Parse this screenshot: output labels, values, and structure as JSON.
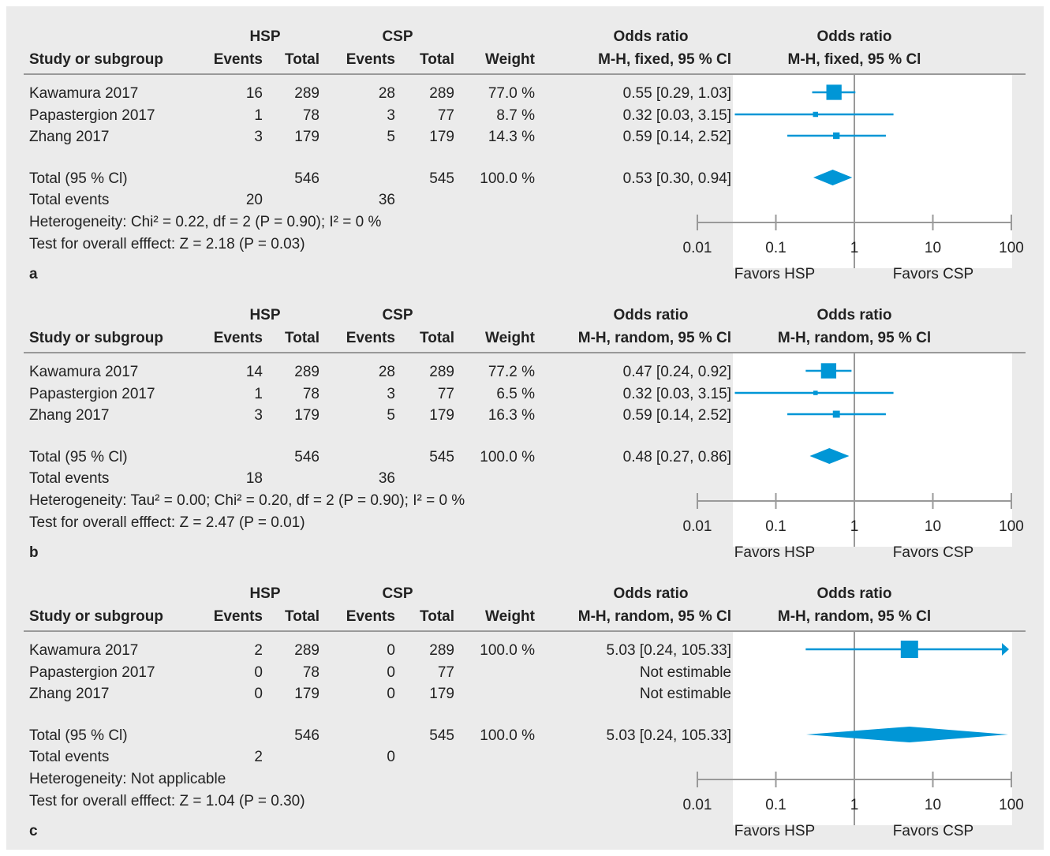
{
  "colors": {
    "panel_bg": "#ebebeb",
    "plot_bg": "#ffffff",
    "accent": "#0096d6",
    "axis": "#999999",
    "text": "#222222"
  },
  "headers": {
    "hsp": "HSP",
    "csp": "CSP",
    "study": "Study or subgroup",
    "events": "Events",
    "total": "Total",
    "weight": "Weight",
    "or_title": "Odds ratio"
  },
  "chart_data": [
    {
      "type": "forest",
      "panel": "a",
      "method": "M-H, fixed, 95 % Cl",
      "x_scale": "log",
      "xlim": [
        0.01,
        100
      ],
      "ticks": [
        "0.01",
        "0.1",
        "1",
        "10",
        "100"
      ],
      "favors_left": "Favors HSP",
      "favors_right": "Favors CSP",
      "studies": [
        {
          "name": "Kawamura 2017",
          "hsp_events": "16",
          "hsp_total": "289",
          "csp_events": "28",
          "csp_total": "289",
          "weight": "77.0 %",
          "ci_text": "0.55 [0.29, 1.03]",
          "or": 0.55,
          "lo": 0.29,
          "hi": 1.03,
          "w": 77.0
        },
        {
          "name": "Papastergion 2017",
          "hsp_events": "1",
          "hsp_total": "78",
          "csp_events": "3",
          "csp_total": "77",
          "weight": "8.7 %",
          "ci_text": "0.32 [0.03, 3.15]",
          "or": 0.32,
          "lo": 0.03,
          "hi": 3.15,
          "w": 8.7
        },
        {
          "name": "Zhang 2017",
          "hsp_events": "3",
          "hsp_total": "179",
          "csp_events": "5",
          "csp_total": "179",
          "weight": "14.3 %",
          "ci_text": "0.59 [0.14, 2.52]",
          "or": 0.59,
          "lo": 0.14,
          "hi": 2.52,
          "w": 14.3
        }
      ],
      "total": {
        "label": "Total (95 % Cl)",
        "hsp_total": "546",
        "csp_total": "545",
        "weight": "100.0 %",
        "ci_text": "0.53 [0.30, 0.94]",
        "or": 0.53,
        "lo": 0.3,
        "hi": 0.94
      },
      "events": {
        "label": "Total events",
        "hsp": "20",
        "csp": "36"
      },
      "heterogeneity": "Heterogeneity: Chi² = 0.22, df = 2 (P = 0.90); I² = 0 %",
      "overall": "Test for overall efffect: Z = 2.18 (P = 0.03)"
    },
    {
      "type": "forest",
      "panel": "b",
      "method": "M-H, random, 95 % Cl",
      "x_scale": "log",
      "xlim": [
        0.01,
        100
      ],
      "ticks": [
        "0.01",
        "0.1",
        "1",
        "10",
        "100"
      ],
      "favors_left": "Favors HSP",
      "favors_right": "Favors CSP",
      "studies": [
        {
          "name": "Kawamura 2017",
          "hsp_events": "14",
          "hsp_total": "289",
          "csp_events": "28",
          "csp_total": "289",
          "weight": "77.2 %",
          "ci_text": "0.47 [0.24, 0.92]",
          "or": 0.47,
          "lo": 0.24,
          "hi": 0.92,
          "w": 77.2
        },
        {
          "name": "Papastergion 2017",
          "hsp_events": "1",
          "hsp_total": "78",
          "csp_events": "3",
          "csp_total": "77",
          "weight": "6.5 %",
          "ci_text": "0.32 [0.03, 3.15]",
          "or": 0.32,
          "lo": 0.03,
          "hi": 3.15,
          "w": 6.5
        },
        {
          "name": "Zhang 2017",
          "hsp_events": "3",
          "hsp_total": "179",
          "csp_events": "5",
          "csp_total": "179",
          "weight": "16.3 %",
          "ci_text": "0.59 [0.14, 2.52]",
          "or": 0.59,
          "lo": 0.14,
          "hi": 2.52,
          "w": 16.3
        }
      ],
      "total": {
        "label": "Total (95 % Cl)",
        "hsp_total": "546",
        "csp_total": "545",
        "weight": "100.0 %",
        "ci_text": "0.48 [0.27, 0.86]",
        "or": 0.48,
        "lo": 0.27,
        "hi": 0.86
      },
      "events": {
        "label": "Total events",
        "hsp": "18",
        "csp": "36"
      },
      "heterogeneity": "Heterogeneity: Tau² = 0.00; Chi² = 0.20, df = 2 (P = 0.90); I² = 0 %",
      "overall": "Test for overall efffect: Z = 2.47 (P = 0.01)"
    },
    {
      "type": "forest",
      "panel": "c",
      "method": "M-H, random, 95 % Cl",
      "x_scale": "log",
      "xlim": [
        0.01,
        100
      ],
      "ticks": [
        "0.01",
        "0.1",
        "1",
        "10",
        "100"
      ],
      "favors_left": "Favors HSP",
      "favors_right": "Favors CSP",
      "studies": [
        {
          "name": "Kawamura 2017",
          "hsp_events": "2",
          "hsp_total": "289",
          "csp_events": "0",
          "csp_total": "289",
          "weight": "100.0 %",
          "ci_text": "5.03 [0.24, 105.33]",
          "or": 5.03,
          "lo": 0.24,
          "hi": 105.33,
          "w": 100.0
        },
        {
          "name": "Papastergion 2017",
          "hsp_events": "0",
          "hsp_total": "78",
          "csp_events": "0",
          "csp_total": "77",
          "weight": "",
          "ci_text": "Not estimable",
          "or": null,
          "lo": null,
          "hi": null,
          "w": null
        },
        {
          "name": "Zhang 2017",
          "hsp_events": "0",
          "hsp_total": "179",
          "csp_events": "0",
          "csp_total": "179",
          "weight": "",
          "ci_text": "Not estimable",
          "or": null,
          "lo": null,
          "hi": null,
          "w": null
        }
      ],
      "total": {
        "label": "Total (95 % Cl)",
        "hsp_total": "546",
        "csp_total": "545",
        "weight": "100.0 %",
        "ci_text": "5.03 [0.24, 105.33]",
        "or": 5.03,
        "lo": 0.24,
        "hi": 105.33
      },
      "events": {
        "label": "Total events",
        "hsp": "2",
        "csp": "0"
      },
      "heterogeneity": "Heterogeneity: Not applicable",
      "overall": "Test for overall efffect: Z = 1.04 (P = 0.30)"
    }
  ]
}
